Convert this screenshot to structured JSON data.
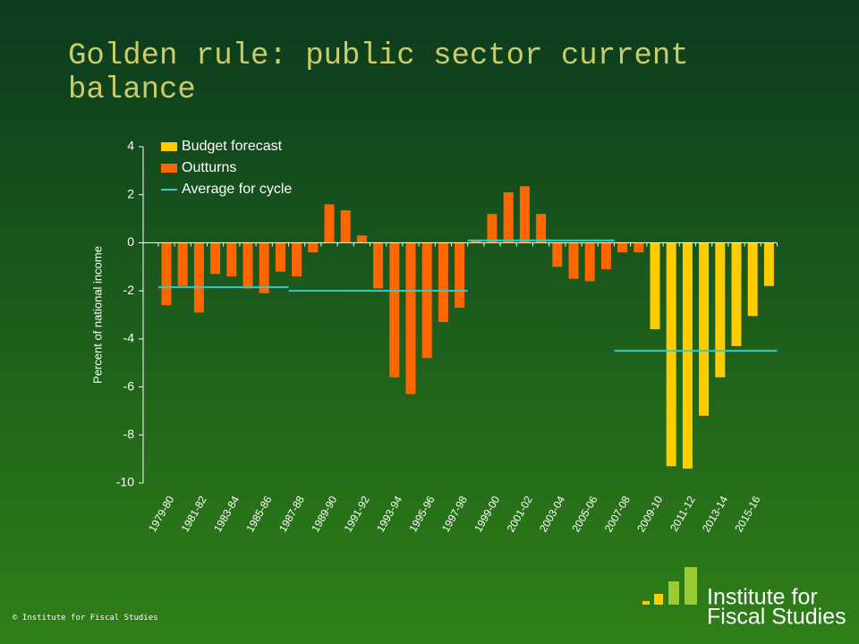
{
  "chart_data": {
    "type": "bar",
    "title": "Golden rule: public sector current balance",
    "y_label": "Percent of national income",
    "categories": [
      "1979-80",
      null,
      "1981-82",
      null,
      "1983-84",
      null,
      "1985-86",
      null,
      "1987-88",
      null,
      "1989-90",
      null,
      "1991-92",
      null,
      "1993-94",
      null,
      "1995-96",
      null,
      "1997-98",
      null,
      "1999-00",
      null,
      "2001-02",
      null,
      "2003-04",
      null,
      "2005-06",
      null,
      "2007-08",
      null,
      "2009-10",
      null,
      "2011-12",
      null,
      "2013-14",
      null,
      "2015-16",
      null
    ],
    "series": [
      {
        "name": "Budget forecast",
        "color": "#ffcc00",
        "values": [
          null,
          null,
          null,
          null,
          null,
          null,
          null,
          null,
          null,
          null,
          null,
          null,
          null,
          null,
          null,
          null,
          null,
          null,
          null,
          null,
          null,
          null,
          null,
          null,
          null,
          null,
          null,
          null,
          null,
          null,
          -3.6,
          -9.3,
          -9.4,
          -7.2,
          -5.6,
          -4.3,
          -3.05,
          -1.8
        ]
      },
      {
        "name": "Outturns",
        "color": "#ff6600",
        "values": [
          -2.6,
          -1.8,
          -2.9,
          -1.3,
          -1.4,
          -1.9,
          -2.1,
          -1.2,
          -1.4,
          -0.4,
          1.6,
          1.35,
          0.3,
          -1.9,
          -5.6,
          -6.3,
          -4.8,
          -3.3,
          -2.7,
          0.1,
          1.2,
          2.1,
          2.35,
          1.2,
          -1.0,
          -1.5,
          -1.6,
          -1.1,
          -0.4,
          -0.4,
          null,
          null,
          null,
          null,
          null,
          null,
          null,
          null
        ]
      },
      {
        "name": "Average for cycle",
        "type": "line",
        "color": "#33cccc",
        "values": [
          -1.85,
          -1.85,
          -1.85,
          -1.85,
          -1.85,
          -1.85,
          -1.85,
          -1.85,
          -2.0,
          -2.0,
          -2.0,
          -2.0,
          -2.0,
          -2.0,
          -2.0,
          -2.0,
          -2.0,
          -2.0,
          -2.0,
          0.1,
          0.1,
          0.1,
          0.1,
          0.1,
          0.1,
          0.1,
          0.1,
          0.1,
          -4.5,
          -4.5,
          -4.5,
          -4.5,
          -4.5,
          -4.5,
          -4.5,
          -4.5,
          -4.5,
          -4.5
        ]
      }
    ],
    "ylim": [
      -10,
      4
    ],
    "yticks": [
      -10,
      -8,
      -6,
      -4,
      -2,
      0,
      2,
      4
    ],
    "legend": "top-left",
    "footer": "© Institute for Fiscal Studies",
    "logo": [
      "Institute for",
      "Fiscal Studies"
    ]
  }
}
